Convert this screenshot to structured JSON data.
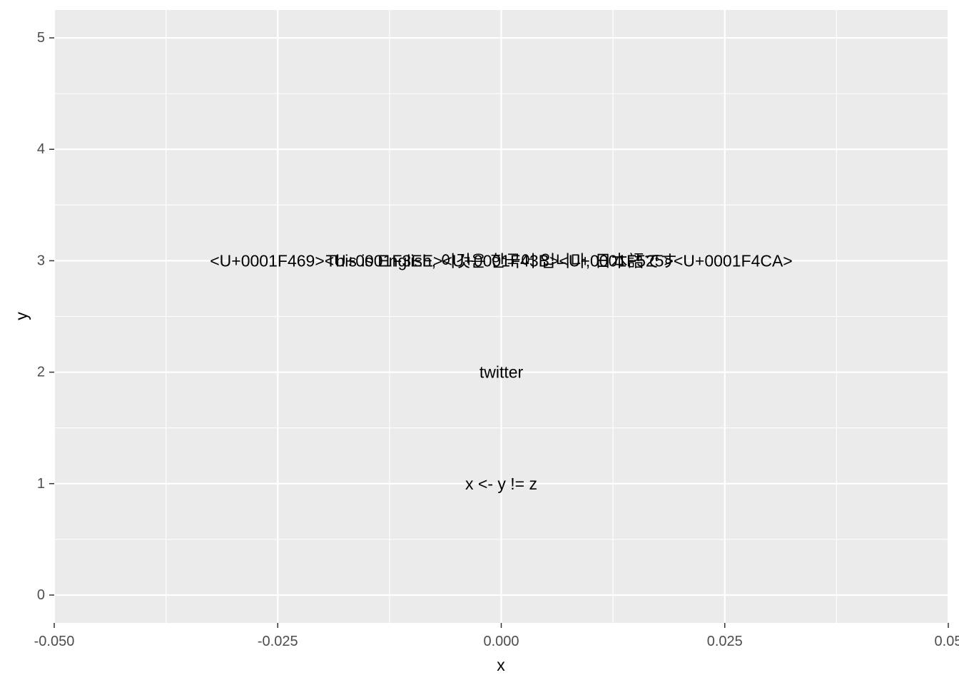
{
  "chart_data": {
    "type": "scatter",
    "title": "",
    "xlabel": "x",
    "ylabel": "y",
    "xlim": [
      -0.05,
      0.05
    ],
    "ylim": [
      -0.25,
      5.25
    ],
    "x_ticks": [
      -0.05,
      -0.025,
      0.0,
      0.025,
      0.05
    ],
    "x_tick_labels": [
      "-0.050",
      "-0.025",
      "0.000",
      "0.025",
      "0.05"
    ],
    "y_ticks": [
      0,
      1,
      2,
      3,
      4,
      5
    ],
    "y_tick_labels": [
      "0",
      "1",
      "2",
      "3",
      "4",
      "5"
    ],
    "grid": true,
    "legend": "none",
    "colors": {
      "panel": "#ebebeb",
      "grid": "#ffffff",
      "text": "#000000",
      "tick_text": "#4d4d4d",
      "tick_mark": "#333333"
    },
    "points": [
      {
        "x": 0,
        "y": 1,
        "label": "x <- y != z"
      },
      {
        "x": 0,
        "y": 2,
        "label": "twitter"
      },
      {
        "x": 0,
        "y": 3,
        "label": "This is English, 이것은 한국어 입니다, 日本語です"
      },
      {
        "x": 0,
        "y": 3,
        "label": "<U+0001F469><U+0001F3EE><U+0001F43B><U+0001F525><U+0001F4CA>"
      }
    ]
  }
}
